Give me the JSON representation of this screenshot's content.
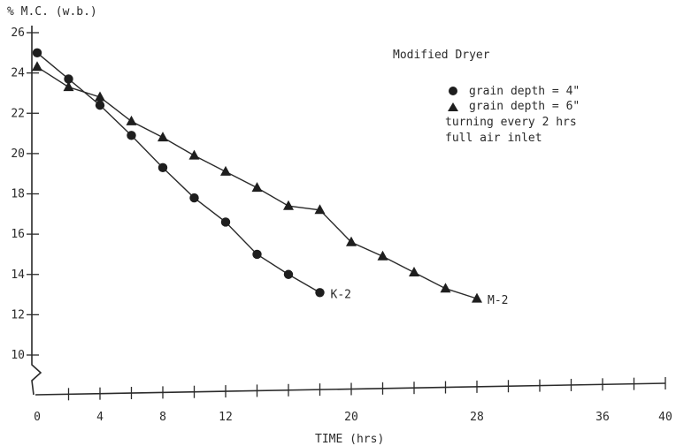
{
  "chart_data": {
    "type": "line",
    "ylabel": "% M.C. (w.b.)",
    "xlabel": "TIME (hrs)",
    "xlim": [
      0,
      40
    ],
    "ylim": [
      10,
      26
    ],
    "x_ticks": [
      0,
      4,
      8,
      12,
      20,
      28,
      36,
      40
    ],
    "y_ticks": [
      10,
      12,
      14,
      16,
      18,
      20,
      22,
      24,
      26
    ],
    "grid": false,
    "legend": {
      "title": "Modified Dryer",
      "entries": [
        "grain depth = 4\"",
        "grain depth = 6\""
      ],
      "notes": [
        "turning every 2 hrs",
        "full air inlet"
      ]
    },
    "series": [
      {
        "name": "grain depth = 4\"",
        "end_label": "K-2",
        "marker": "circle",
        "x": [
          0,
          2,
          4,
          6,
          8,
          10,
          12,
          14,
          16,
          18
        ],
        "y": [
          25.0,
          23.7,
          22.4,
          20.9,
          19.3,
          17.8,
          16.6,
          15.0,
          14.0,
          13.1
        ]
      },
      {
        "name": "grain depth = 6\"",
        "end_label": "M-2",
        "marker": "triangle",
        "x": [
          0,
          2,
          4,
          6,
          8,
          10,
          12,
          14,
          16,
          18,
          20,
          22,
          24,
          26,
          28
        ],
        "y": [
          24.3,
          23.3,
          22.8,
          21.6,
          20.8,
          19.9,
          19.1,
          18.3,
          17.4,
          17.2,
          15.6,
          14.9,
          14.1,
          13.3,
          12.8
        ]
      }
    ]
  }
}
